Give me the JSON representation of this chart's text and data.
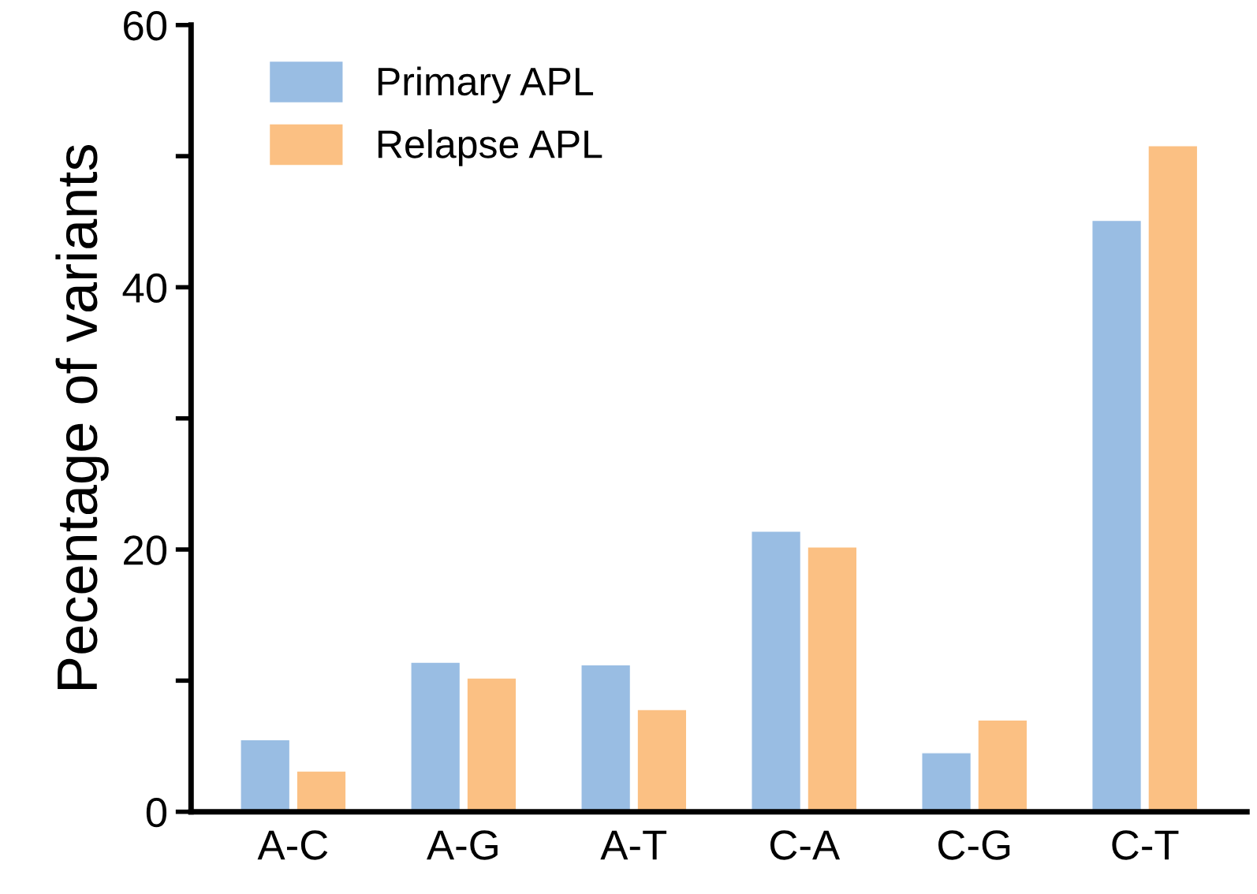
{
  "chart_data": {
    "type": "bar",
    "ylabel": "Pecentage of variants",
    "categories": [
      "A-C",
      "A-G",
      "A-T",
      "C-A",
      "C-G",
      "C-T"
    ],
    "series": [
      {
        "name": "Primary APL",
        "color": "#99bde3",
        "values": [
          5.5,
          11.4,
          11.2,
          21.4,
          4.5,
          45.1
        ]
      },
      {
        "name": "Relapse APL",
        "color": "#fbc083",
        "values": [
          3.1,
          10.2,
          7.8,
          20.2,
          7.0,
          50.8
        ]
      }
    ],
    "ylim": [
      0,
      60
    ],
    "yticks": [
      0,
      {
        "value": 10,
        "label": null
      },
      20,
      {
        "value": 30,
        "label": null
      },
      40,
      {
        "value": 50,
        "label": null
      },
      60
    ],
    "grid": false,
    "legend": "top left"
  }
}
